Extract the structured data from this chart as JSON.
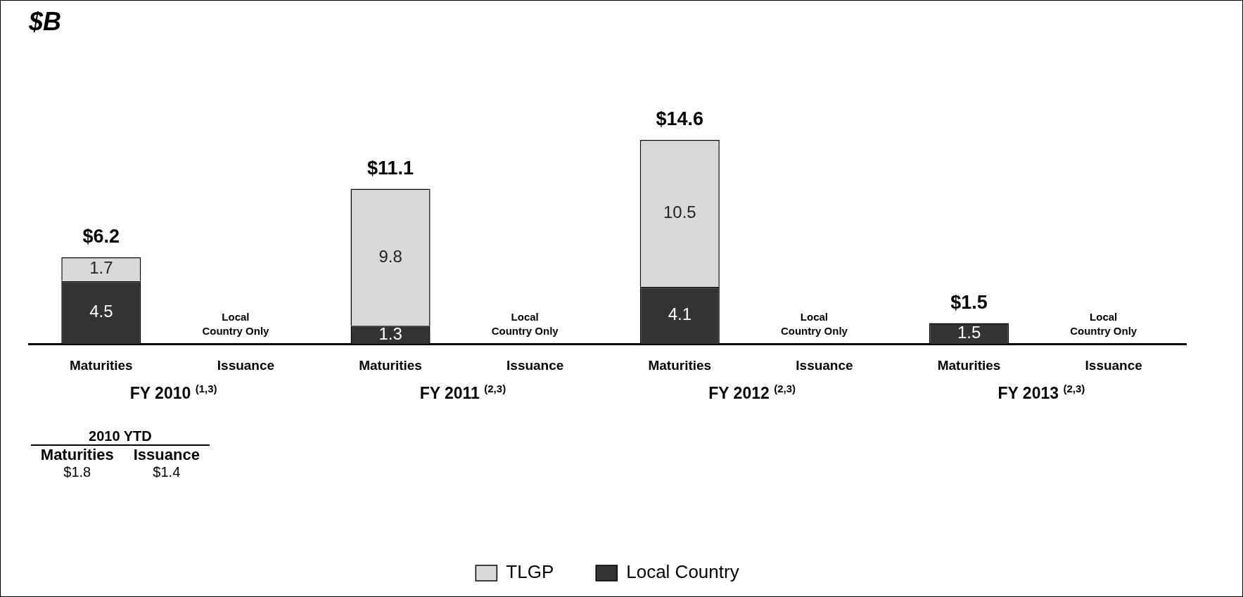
{
  "chart_data": {
    "type": "bar",
    "title": "$B",
    "stacked": true,
    "data_labels": true,
    "legend": "bottom",
    "grid": false,
    "categories": [
      "Maturities",
      "Issuance",
      "Maturities",
      "Issuance",
      "Maturities",
      "Issuance",
      "Maturities",
      "Issuance"
    ],
    "series": [
      {
        "name": "Local Country",
        "color": "#333333",
        "values": [
          4.5,
          null,
          1.3,
          null,
          4.1,
          null,
          1.5,
          null
        ]
      },
      {
        "name": "TLGP",
        "color": "#d9d9d9",
        "values": [
          1.7,
          null,
          9.8,
          null,
          10.5,
          null,
          null,
          null
        ]
      }
    ],
    "totals": [
      "$6.2",
      null,
      "$11.1",
      null,
      "$14.6",
      null,
      "$1.5",
      null
    ],
    "annotations": [
      "FY 2010 $^{(1,3)}$",
      "FY 2011 $^{(2,3)}$",
      "FY 2012 $^{(2,3)}$",
      "FY 2013 $^{(2,3)}$",
      "Local Country Only",
      "Local Country Only",
      "Local Country Only",
      "Local Country Only",
      "2010 YTD",
      "Maturities",
      "Issuance",
      "$1.8",
      "$1.4"
    ]
  }
}
